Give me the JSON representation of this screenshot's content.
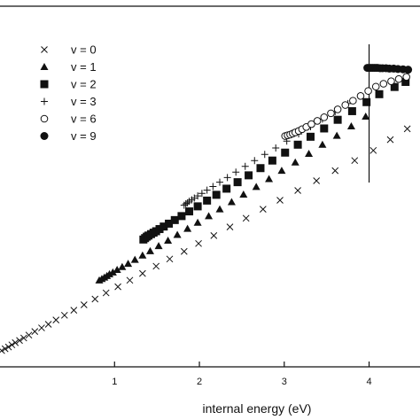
{
  "chart_data": {
    "type": "scatter",
    "title": "",
    "xlabel": "internal energy (eV)",
    "ylabel": "",
    "xlim": [
      -0.35,
      4.6
    ],
    "ylim": [
      0,
      1
    ],
    "xticks": [
      1,
      2,
      3,
      4
    ],
    "yticks": [],
    "grid": false,
    "legend_position": "top-left",
    "marker_line_x": 4.0,
    "series": [
      {
        "name": "v = 0",
        "marker": "x",
        "x": [
          -0.33,
          -0.29,
          -0.25,
          -0.21,
          -0.17,
          -0.12,
          -0.07,
          -0.01,
          0.06,
          0.14,
          0.22,
          0.31,
          0.41,
          0.52,
          0.64,
          0.77,
          0.9,
          1.04,
          1.18,
          1.33,
          1.49,
          1.65,
          1.82,
          1.99,
          2.17,
          2.36,
          2.55,
          2.75,
          2.95,
          3.16,
          3.38,
          3.6,
          3.83,
          4.05,
          4.25,
          4.45
        ],
        "y": [
          0.045,
          0.05,
          0.055,
          0.061,
          0.067,
          0.073,
          0.08,
          0.088,
          0.098,
          0.108,
          0.118,
          0.13,
          0.143,
          0.157,
          0.172,
          0.188,
          0.205,
          0.222,
          0.24,
          0.259,
          0.279,
          0.299,
          0.32,
          0.342,
          0.364,
          0.388,
          0.412,
          0.437,
          0.462,
          0.489,
          0.516,
          0.544,
          0.572,
          0.6,
          0.63,
          0.66
        ]
      },
      {
        "name": "v = 1",
        "marker": "triangle",
        "x": [
          0.82,
          0.85,
          0.88,
          0.91,
          0.94,
          0.98,
          1.03,
          1.09,
          1.16,
          1.24,
          1.33,
          1.42,
          1.52,
          1.63,
          1.74,
          1.86,
          1.98,
          2.11,
          2.24,
          2.38,
          2.52,
          2.67,
          2.82,
          2.97,
          3.13,
          3.29,
          3.45,
          3.62,
          3.79,
          3.96
        ],
        "y": [
          0.24,
          0.244,
          0.248,
          0.252,
          0.257,
          0.262,
          0.269,
          0.277,
          0.286,
          0.297,
          0.309,
          0.321,
          0.335,
          0.35,
          0.366,
          0.383,
          0.4,
          0.418,
          0.437,
          0.457,
          0.478,
          0.499,
          0.521,
          0.544,
          0.567,
          0.591,
          0.616,
          0.641,
          0.667,
          0.694
        ]
      },
      {
        "name": "v = 2",
        "marker": "square",
        "x": [
          1.34,
          1.36,
          1.38,
          1.4,
          1.43,
          1.46,
          1.49,
          1.53,
          1.58,
          1.64,
          1.71,
          1.79,
          1.88,
          1.98,
          2.09,
          2.2,
          2.32,
          2.45,
          2.58,
          2.72,
          2.86,
          3.01,
          3.16,
          3.31,
          3.47,
          3.63,
          3.8,
          3.97,
          4.12,
          4.3,
          4.43
        ],
        "y": [
          0.353,
          0.357,
          0.361,
          0.364,
          0.368,
          0.372,
          0.376,
          0.382,
          0.389,
          0.397,
          0.407,
          0.418,
          0.431,
          0.445,
          0.461,
          0.477,
          0.494,
          0.512,
          0.531,
          0.551,
          0.572,
          0.594,
          0.616,
          0.638,
          0.661,
          0.685,
          0.709,
          0.734,
          0.756,
          0.776,
          0.79
        ]
      },
      {
        "name": "v = 3",
        "marker": "plus",
        "x": [
          1.82,
          1.84,
          1.86,
          1.88,
          1.91,
          1.94,
          1.98,
          2.03,
          2.09,
          2.16,
          2.24,
          2.33,
          2.43,
          2.54,
          2.65,
          2.77,
          2.9,
          3.03,
          3.17,
          3.31,
          3.45,
          3.6,
          3.75,
          3.9
        ],
        "y": [
          0.448,
          0.452,
          0.455,
          0.459,
          0.463,
          0.468,
          0.474,
          0.481,
          0.49,
          0.5,
          0.512,
          0.525,
          0.54,
          0.556,
          0.572,
          0.589,
          0.607,
          0.626,
          0.646,
          0.666,
          0.687,
          0.708,
          0.73,
          0.752
        ]
      },
      {
        "name": "v = 6",
        "marker": "circle-open",
        "x": [
          3.01,
          3.04,
          3.07,
          3.1,
          3.13,
          3.17,
          3.21,
          3.26,
          3.32,
          3.39,
          3.47,
          3.55,
          3.63,
          3.72,
          3.81,
          3.9,
          3.99,
          4.08,
          4.17,
          4.26,
          4.35,
          4.44
        ],
        "y": [
          0.64,
          0.642,
          0.644,
          0.647,
          0.65,
          0.654,
          0.659,
          0.665,
          0.673,
          0.682,
          0.692,
          0.703,
          0.714,
          0.726,
          0.738,
          0.751,
          0.765,
          0.777,
          0.785,
          0.792,
          0.798,
          0.804
        ]
      },
      {
        "name": "v = 9",
        "marker": "circle-filled",
        "x": [
          3.98,
          4.0,
          4.02,
          4.04,
          4.06,
          4.08,
          4.1,
          4.13,
          4.16,
          4.2,
          4.24,
          4.29,
          4.34,
          4.4,
          4.46
        ],
        "y": [
          0.829,
          0.829,
          0.829,
          0.829,
          0.829,
          0.829,
          0.829,
          0.828,
          0.828,
          0.828,
          0.827,
          0.827,
          0.826,
          0.825,
          0.824
        ]
      }
    ]
  }
}
